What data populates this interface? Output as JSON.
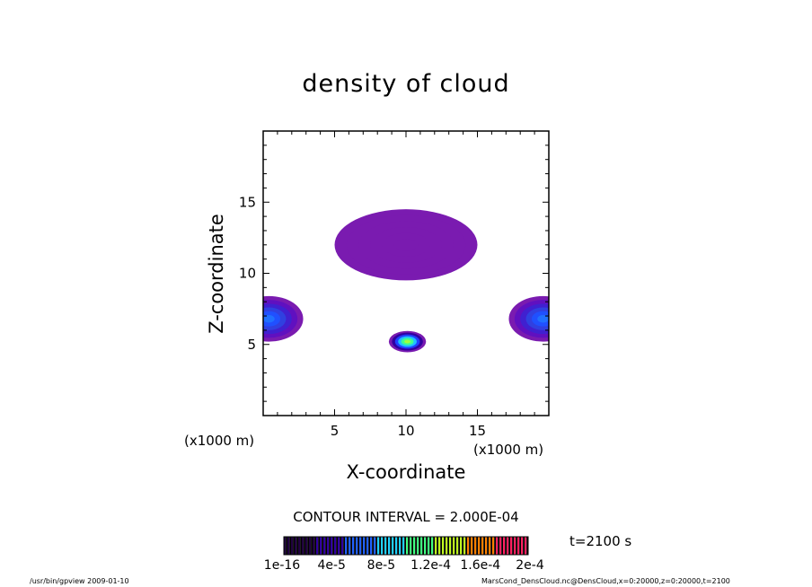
{
  "chart_data": {
    "type": "heatmap",
    "title": "density of cloud",
    "xlabel": "X-coordinate",
    "ylabel": "Z-coordinate",
    "x_unit": "(x1000 m)",
    "xlim": [
      0,
      20
    ],
    "ylim": [
      0,
      20
    ],
    "x_ticks": [
      "5",
      "10",
      "15"
    ],
    "x_tick_values": [
      5,
      10,
      15
    ],
    "y_ticks": [
      "5",
      "10",
      "15"
    ],
    "y_tick_values": [
      5,
      10,
      15
    ],
    "contour_interval_text": "CONTOUR INTERVAL = 2.000E-04",
    "time_label": "t=2100 s",
    "colorbar_labels": [
      "1e-16",
      "4e-5",
      "8e-5",
      "1.2e-4",
      "1.6e-4",
      "2e-4"
    ],
    "colorbar_values": [
      1e-16,
      4e-05,
      8e-05,
      0.00012,
      0.00016,
      0.0002
    ],
    "colormap": [
      "#200040",
      "#3000a0",
      "#2060ff",
      "#20d0ff",
      "#40ff80",
      "#c0ff20",
      "#ff8000",
      "#ff2060"
    ],
    "blobs": [
      {
        "name": "central-lower",
        "cx": 10.1,
        "cz": 5.2,
        "rx": 1.3,
        "rz": 0.75,
        "peak": 6.5e-05
      },
      {
        "name": "left-side",
        "cx": 0.4,
        "cz": 6.8,
        "rx": 2.4,
        "rz": 1.6,
        "peak": 1.8e-05
      },
      {
        "name": "right-side",
        "cx": 19.6,
        "cz": 6.8,
        "rx": 2.4,
        "rz": 1.6,
        "peak": 1.8e-05
      },
      {
        "name": "upper-central",
        "cx": 10.0,
        "cz": 12.0,
        "rx": 5.0,
        "rz": 2.5,
        "peak": 5e-06
      }
    ]
  },
  "footer": {
    "left": "/usr/bin/gpview   2009-01-10",
    "right": "MarsCond_DensCloud.nc@DensCloud,x=0:20000,z=0:20000,t=2100"
  }
}
